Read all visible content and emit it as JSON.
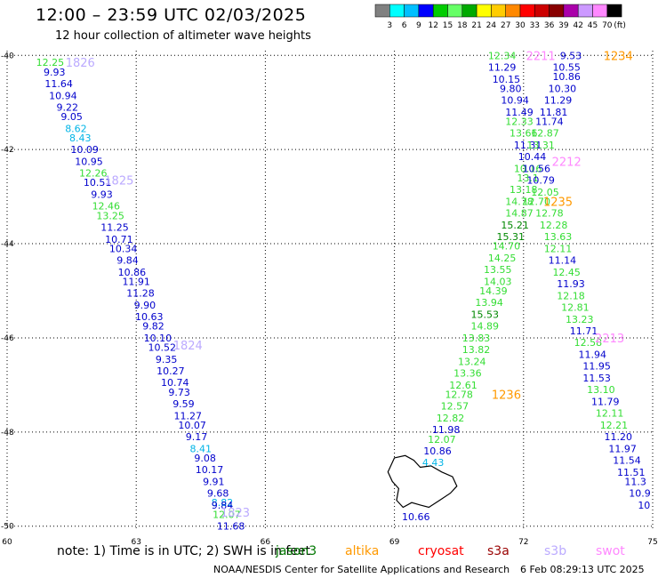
{
  "header": {
    "title": "12:00 – 23:59 UTC 02/03/2025",
    "subtitle": "12 hour collection of altimeter wave heights"
  },
  "colorbar": {
    "levels": [
      "3",
      "6",
      "9",
      "12",
      "15",
      "18",
      "21",
      "24",
      "27",
      "30",
      "33",
      "36",
      "39",
      "42",
      "45",
      "70"
    ],
    "unit": "(ft)",
    "colors": [
      "#808080",
      "#00ffff",
      "#00bfff",
      "#0000ff",
      "#00cc00",
      "#66ff66",
      "#00aa00",
      "#ffff00",
      "#ffcc00",
      "#ff8800",
      "#ff0000",
      "#cc0000",
      "#880000",
      "#aa00aa",
      "#cc99ff",
      "#ff88ff",
      "#000000"
    ]
  },
  "note": {
    "text": "note: 1) Time is in UTC; 2) SWH is in feet"
  },
  "satellites": [
    {
      "name": "jason3",
      "color": "#007700"
    },
    {
      "name": "altika",
      "color": "#ff9900"
    },
    {
      "name": "cryosat",
      "color": "#ff0000"
    },
    {
      "name": "s3a",
      "color": "#990000"
    },
    {
      "name": "s3b",
      "color": "#bbaaff"
    },
    {
      "name": "swot",
      "color": "#ff88ff"
    }
  ],
  "footer": {
    "credit": "NOAA/NESDIS Center for Satellite Applications and Research",
    "timestamp": "6 Feb 08:29:13 UTC 2025"
  },
  "chart_data": {
    "type": "scatter",
    "x_ticks": [
      "60",
      "63",
      "66",
      "69",
      "72",
      "75"
    ],
    "y_ticks": [
      "-40",
      "-42",
      "-44",
      "-46",
      "-48",
      "-50"
    ],
    "xlim": [
      60,
      75
    ],
    "ylim": [
      -50.1,
      -39.9
    ],
    "grid": true,
    "value_colors": {
      "blue": "#0000cc",
      "green": "#33dd33",
      "dkgreen": "#008800",
      "cyan": "#00b4e6"
    },
    "pass_colors": {
      "s3b": "#bbaaff",
      "altika": "#ff9900",
      "swot": "#ff88ff"
    },
    "pass_labels": [
      {
        "text": "1826",
        "sat": "s3b",
        "lon": 61.7,
        "lat": -40.15
      },
      {
        "text": "1825",
        "sat": "s3b",
        "lon": 62.6,
        "lat": -42.65
      },
      {
        "text": "1824",
        "sat": "s3b",
        "lon": 64.2,
        "lat": -46.15
      },
      {
        "text": "1823",
        "sat": "s3b",
        "lon": 65.3,
        "lat": -49.7
      },
      {
        "text": "2211",
        "sat": "swot",
        "lon": 72.4,
        "lat": -40.0
      },
      {
        "text": "1234",
        "sat": "altika",
        "lon": 74.2,
        "lat": -40.0
      },
      {
        "text": "2212",
        "sat": "swot",
        "lon": 73.0,
        "lat": -42.25
      },
      {
        "text": "1235",
        "sat": "altika",
        "lon": 72.8,
        "lat": -43.1
      },
      {
        "text": "1236",
        "sat": "altika",
        "lon": 71.6,
        "lat": -47.2
      },
      {
        "text": "2213",
        "sat": "swot",
        "lon": 74.0,
        "lat": -46.0
      }
    ],
    "series": [
      {
        "name": "1826",
        "points": [
          {
            "lon": 61.0,
            "lat": -40.15,
            "v": "12.25",
            "c": "green"
          },
          {
            "lon": 61.1,
            "lat": -40.35,
            "v": "9.93",
            "c": "blue"
          },
          {
            "lon": 61.2,
            "lat": -40.6,
            "v": "11.64",
            "c": "blue"
          },
          {
            "lon": 61.3,
            "lat": -40.85,
            "v": "10.94",
            "c": "blue"
          },
          {
            "lon": 61.4,
            "lat": -41.1,
            "v": "9.22",
            "c": "blue"
          },
          {
            "lon": 61.5,
            "lat": -41.3,
            "v": "9.05",
            "c": "blue"
          },
          {
            "lon": 61.6,
            "lat": -41.55,
            "v": "8.62",
            "c": "cyan"
          },
          {
            "lon": 61.7,
            "lat": -41.75,
            "v": "8.43",
            "c": "cyan"
          },
          {
            "lon": 61.8,
            "lat": -42.0,
            "v": "10.09",
            "c": "blue"
          },
          {
            "lon": 61.9,
            "lat": -42.25,
            "v": "10.95",
            "c": "blue"
          },
          {
            "lon": 62.0,
            "lat": -42.5,
            "v": "12.26",
            "c": "green"
          },
          {
            "lon": 62.1,
            "lat": -42.7,
            "v": "10.51",
            "c": "blue"
          },
          {
            "lon": 62.2,
            "lat": -42.95,
            "v": "9.93",
            "c": "blue"
          },
          {
            "lon": 62.3,
            "lat": -43.2,
            "v": "12.46",
            "c": "green"
          },
          {
            "lon": 62.4,
            "lat": -43.4,
            "v": "13.25",
            "c": "green"
          },
          {
            "lon": 62.5,
            "lat": -43.65,
            "v": "11.25",
            "c": "blue"
          },
          {
            "lon": 62.6,
            "lat": -43.9,
            "v": "10.71",
            "c": "blue"
          },
          {
            "lon": 62.7,
            "lat": -44.1,
            "v": "10.34",
            "c": "blue"
          },
          {
            "lon": 62.8,
            "lat": -44.35,
            "v": "9.84",
            "c": "blue"
          },
          {
            "lon": 62.9,
            "lat": -44.6,
            "v": "10.86",
            "c": "blue"
          },
          {
            "lon": 63.0,
            "lat": -44.8,
            "v": "11.91",
            "c": "blue"
          },
          {
            "lon": 63.1,
            "lat": -45.05,
            "v": "11.28",
            "c": "blue"
          },
          {
            "lon": 63.2,
            "lat": -45.3,
            "v": "9.90",
            "c": "blue"
          },
          {
            "lon": 63.3,
            "lat": -45.55,
            "v": "10.63",
            "c": "blue"
          },
          {
            "lon": 63.4,
            "lat": -45.75,
            "v": "9.82",
            "c": "blue"
          },
          {
            "lon": 63.5,
            "lat": -46.0,
            "v": "10.10",
            "c": "blue"
          },
          {
            "lon": 63.6,
            "lat": -46.2,
            "v": "10.52",
            "c": "blue"
          },
          {
            "lon": 63.7,
            "lat": -46.45,
            "v": "9.35",
            "c": "blue"
          },
          {
            "lon": 63.8,
            "lat": -46.7,
            "v": "10.27",
            "c": "blue"
          },
          {
            "lon": 63.9,
            "lat": -46.95,
            "v": "10.74",
            "c": "blue"
          },
          {
            "lon": 64.0,
            "lat": -47.15,
            "v": "9.73",
            "c": "blue"
          },
          {
            "lon": 64.1,
            "lat": -47.4,
            "v": "9.59",
            "c": "blue"
          },
          {
            "lon": 64.2,
            "lat": -47.65,
            "v": "11.27",
            "c": "blue"
          },
          {
            "lon": 64.3,
            "lat": -47.85,
            "v": "10.07",
            "c": "blue"
          },
          {
            "lon": 64.4,
            "lat": -48.1,
            "v": "9.17",
            "c": "blue"
          },
          {
            "lon": 64.5,
            "lat": -48.35,
            "v": "8.41",
            "c": "cyan"
          },
          {
            "lon": 64.6,
            "lat": -48.55,
            "v": "9.08",
            "c": "blue"
          },
          {
            "lon": 64.7,
            "lat": -48.8,
            "v": "10.17",
            "c": "blue"
          },
          {
            "lon": 64.8,
            "lat": -49.05,
            "v": "9.91",
            "c": "blue"
          },
          {
            "lon": 64.9,
            "lat": -49.3,
            "v": "9.68",
            "c": "blue"
          },
          {
            "lon": 65.0,
            "lat": -49.5,
            "v": "8.82",
            "c": "cyan"
          },
          {
            "lon": 65.0,
            "lat": -49.55,
            "v": "9.84",
            "c": "blue"
          },
          {
            "lon": 65.1,
            "lat": -49.75,
            "v": "12.07",
            "c": "green"
          },
          {
            "lon": 65.2,
            "lat": -50.0,
            "v": "11.68",
            "c": "blue"
          }
        ]
      },
      {
        "name": "1234",
        "points": [
          {
            "lon": 71.5,
            "lat": -40.0,
            "v": "12.34",
            "c": "green"
          },
          {
            "lon": 71.5,
            "lat": -40.25,
            "v": "11.29",
            "c": "blue"
          },
          {
            "lon": 71.6,
            "lat": -40.5,
            "v": "10.15",
            "c": "blue"
          },
          {
            "lon": 71.7,
            "lat": -40.7,
            "v": "9.80",
            "c": "blue"
          },
          {
            "lon": 71.8,
            "lat": -40.95,
            "v": "10.94",
            "c": "blue"
          },
          {
            "lon": 71.9,
            "lat": -41.2,
            "v": "11.49",
            "c": "blue"
          },
          {
            "lon": 71.9,
            "lat": -41.4,
            "v": "12.33",
            "c": "green"
          },
          {
            "lon": 72.0,
            "lat": -41.65,
            "v": "13.66",
            "c": "green"
          },
          {
            "lon": 72.1,
            "lat": -41.9,
            "v": "11.31",
            "c": "blue"
          },
          {
            "lon": 72.2,
            "lat": -42.15,
            "v": "10.44",
            "c": "blue"
          },
          {
            "lon": 72.1,
            "lat": -42.4,
            "v": "10.16",
            "c": "green"
          },
          {
            "lon": 72.1,
            "lat": -42.6,
            "v": "13.1",
            "c": "green"
          },
          {
            "lon": 72.0,
            "lat": -42.85,
            "v": "13.18",
            "c": "green"
          },
          {
            "lon": 71.9,
            "lat": -43.1,
            "v": "14.78",
            "c": "green"
          },
          {
            "lon": 71.9,
            "lat": -43.35,
            "v": "14.87",
            "c": "green"
          },
          {
            "lon": 71.8,
            "lat": -43.6,
            "v": "15.21",
            "c": "dkgreen"
          },
          {
            "lon": 71.7,
            "lat": -43.85,
            "v": "15.31",
            "c": "dkgreen"
          },
          {
            "lon": 71.6,
            "lat": -44.05,
            "v": "14.70",
            "c": "green"
          },
          {
            "lon": 71.5,
            "lat": -44.3,
            "v": "14.25",
            "c": "green"
          },
          {
            "lon": 71.4,
            "lat": -44.55,
            "v": "13.55",
            "c": "green"
          },
          {
            "lon": 71.4,
            "lat": -44.8,
            "v": "14.03",
            "c": "green"
          },
          {
            "lon": 71.3,
            "lat": -45.0,
            "v": "14.39",
            "c": "green"
          },
          {
            "lon": 71.2,
            "lat": -45.25,
            "v": "13.94",
            "c": "green"
          },
          {
            "lon": 71.1,
            "lat": -45.5,
            "v": "15.53",
            "c": "dkgreen"
          },
          {
            "lon": 71.1,
            "lat": -45.75,
            "v": "14.89",
            "c": "green"
          },
          {
            "lon": 70.9,
            "lat": -46.0,
            "v": "13.83",
            "c": "green"
          },
          {
            "lon": 70.9,
            "lat": -46.25,
            "v": "13.82",
            "c": "green"
          },
          {
            "lon": 70.8,
            "lat": -46.5,
            "v": "13.24",
            "c": "green"
          },
          {
            "lon": 70.7,
            "lat": -46.75,
            "v": "13.36",
            "c": "green"
          },
          {
            "lon": 70.6,
            "lat": -47.0,
            "v": "12.61",
            "c": "green"
          },
          {
            "lon": 70.5,
            "lat": -47.2,
            "v": "12.78",
            "c": "green"
          },
          {
            "lon": 70.4,
            "lat": -47.45,
            "v": "12.57",
            "c": "green"
          },
          {
            "lon": 70.3,
            "lat": -47.7,
            "v": "12.82",
            "c": "green"
          },
          {
            "lon": 70.2,
            "lat": -47.95,
            "v": "11.98",
            "c": "blue"
          },
          {
            "lon": 70.1,
            "lat": -48.15,
            "v": "12.07",
            "c": "green"
          },
          {
            "lon": 70.0,
            "lat": -48.4,
            "v": "10.86",
            "c": "blue"
          },
          {
            "lon": 69.9,
            "lat": -48.65,
            "v": "4.43",
            "c": "cyan"
          },
          {
            "lon": 69.5,
            "lat": -49.8,
            "v": "10.66",
            "c": "blue"
          }
        ]
      },
      {
        "name": "2211",
        "points": [
          {
            "lon": 73.1,
            "lat": -40.0,
            "v": "9.53",
            "c": "blue"
          },
          {
            "lon": 73.0,
            "lat": -40.25,
            "v": "10.55",
            "c": "blue"
          },
          {
            "lon": 73.0,
            "lat": -40.45,
            "v": "10.86",
            "c": "blue"
          },
          {
            "lon": 72.9,
            "lat": -40.7,
            "v": "10.30",
            "c": "blue"
          },
          {
            "lon": 72.8,
            "lat": -40.95,
            "v": "11.29",
            "c": "blue"
          },
          {
            "lon": 72.7,
            "lat": -41.2,
            "v": "11.81",
            "c": "blue"
          },
          {
            "lon": 72.6,
            "lat": -41.4,
            "v": "11.74",
            "c": "blue"
          },
          {
            "lon": 72.5,
            "lat": -41.65,
            "v": "12.87",
            "c": "green"
          },
          {
            "lon": 72.4,
            "lat": -41.9,
            "v": "13.31",
            "c": "green"
          },
          {
            "lon": 72.3,
            "lat": -42.4,
            "v": "10.56",
            "c": "blue"
          },
          {
            "lon": 72.4,
            "lat": -42.65,
            "v": "10.79",
            "c": "blue"
          },
          {
            "lon": 72.5,
            "lat": -42.9,
            "v": "12.05",
            "c": "green"
          },
          {
            "lon": 72.3,
            "lat": -43.1,
            "v": "12.70",
            "c": "green"
          },
          {
            "lon": 72.6,
            "lat": -43.35,
            "v": "12.78",
            "c": "green"
          },
          {
            "lon": 72.7,
            "lat": -43.6,
            "v": "12.28",
            "c": "green"
          },
          {
            "lon": 72.8,
            "lat": -43.85,
            "v": "13.63",
            "c": "green"
          },
          {
            "lon": 72.8,
            "lat": -44.1,
            "v": "12.11",
            "c": "green"
          },
          {
            "lon": 72.9,
            "lat": -44.35,
            "v": "11.14",
            "c": "blue"
          },
          {
            "lon": 73.0,
            "lat": -44.6,
            "v": "12.45",
            "c": "green"
          },
          {
            "lon": 73.1,
            "lat": -44.85,
            "v": "11.93",
            "c": "blue"
          },
          {
            "lon": 73.1,
            "lat": -45.1,
            "v": "12.18",
            "c": "green"
          },
          {
            "lon": 73.2,
            "lat": -45.35,
            "v": "12.81",
            "c": "green"
          },
          {
            "lon": 73.3,
            "lat": -45.6,
            "v": "13.23",
            "c": "green"
          },
          {
            "lon": 73.4,
            "lat": -45.85,
            "v": "11.71",
            "c": "blue"
          },
          {
            "lon": 73.5,
            "lat": -46.1,
            "v": "12.58",
            "c": "green"
          },
          {
            "lon": 73.6,
            "lat": -46.35,
            "v": "11.94",
            "c": "blue"
          },
          {
            "lon": 73.7,
            "lat": -46.6,
            "v": "11.95",
            "c": "blue"
          },
          {
            "lon": 73.7,
            "lat": -46.85,
            "v": "11.53",
            "c": "blue"
          },
          {
            "lon": 73.8,
            "lat": -47.1,
            "v": "13.10",
            "c": "green"
          },
          {
            "lon": 73.9,
            "lat": -47.35,
            "v": "11.79",
            "c": "blue"
          },
          {
            "lon": 74.0,
            "lat": -47.6,
            "v": "12.11",
            "c": "green"
          },
          {
            "lon": 74.1,
            "lat": -47.85,
            "v": "12.21",
            "c": "green"
          },
          {
            "lon": 74.2,
            "lat": -48.1,
            "v": "11.20",
            "c": "blue"
          },
          {
            "lon": 74.3,
            "lat": -48.35,
            "v": "11.97",
            "c": "blue"
          },
          {
            "lon": 74.4,
            "lat": -48.6,
            "v": "11.54",
            "c": "blue"
          },
          {
            "lon": 74.5,
            "lat": -48.85,
            "v": "11.51",
            "c": "blue"
          },
          {
            "lon": 74.6,
            "lat": -49.05,
            "v": "11.3",
            "c": "blue"
          },
          {
            "lon": 74.7,
            "lat": -49.3,
            "v": "10.9",
            "c": "blue"
          },
          {
            "lon": 74.8,
            "lat": -49.55,
            "v": "10",
            "c": "blue"
          }
        ]
      }
    ],
    "land": [
      [
        [
          69.0,
          -48.55
        ],
        [
          69.25,
          -48.5
        ],
        [
          69.45,
          -48.6
        ],
        [
          69.6,
          -48.75
        ],
        [
          69.85,
          -48.72
        ],
        [
          70.1,
          -48.85
        ],
        [
          70.35,
          -48.95
        ],
        [
          70.45,
          -49.15
        ],
        [
          70.3,
          -49.3
        ],
        [
          70.05,
          -49.45
        ],
        [
          69.8,
          -49.6
        ],
        [
          69.6,
          -49.55
        ],
        [
          69.4,
          -49.5
        ],
        [
          69.2,
          -49.6
        ],
        [
          69.05,
          -49.45
        ],
        [
          69.1,
          -49.2
        ],
        [
          68.95,
          -49.05
        ],
        [
          68.85,
          -48.85
        ]
      ]
    ]
  }
}
